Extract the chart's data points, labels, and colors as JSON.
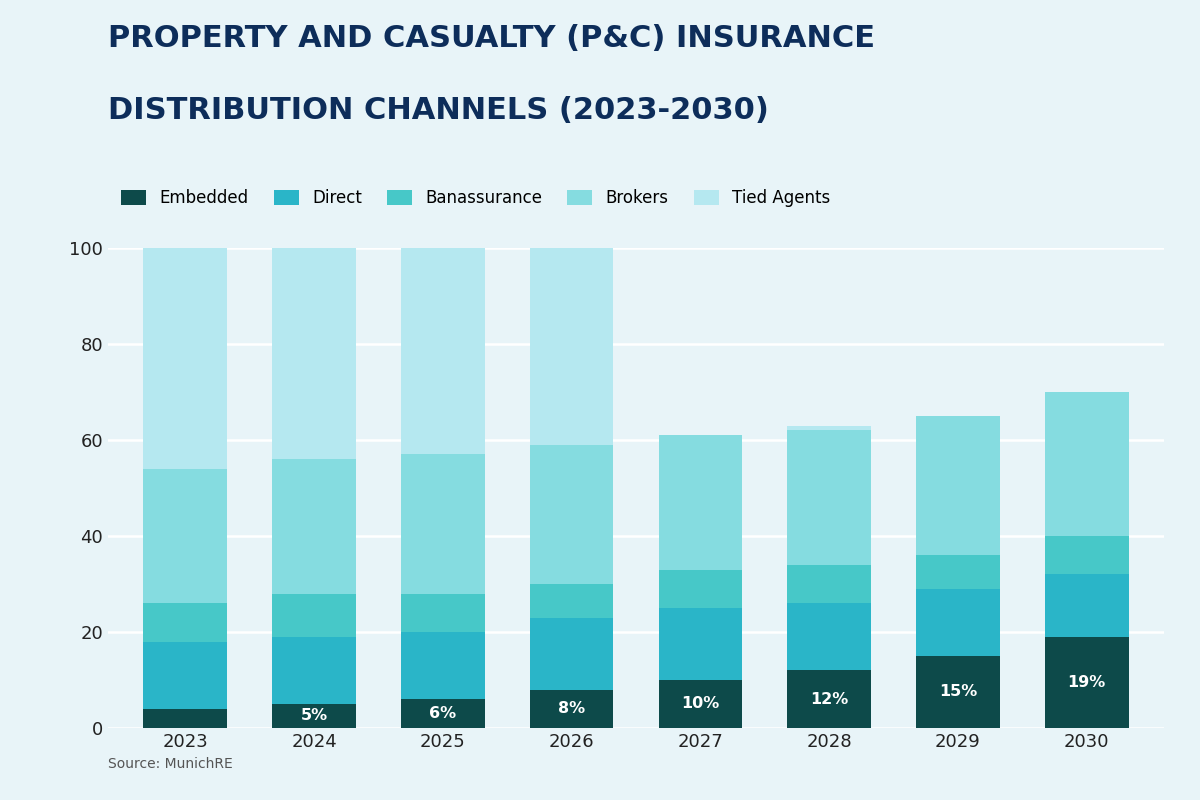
{
  "years": [
    "2023",
    "2024",
    "2025",
    "2026",
    "2027",
    "2028",
    "2029",
    "2030"
  ],
  "embedded": [
    4,
    5,
    6,
    8,
    10,
    12,
    15,
    19
  ],
  "direct": [
    14,
    14,
    14,
    15,
    15,
    14,
    14,
    13
  ],
  "banassurance": [
    8,
    9,
    8,
    7,
    8,
    8,
    7,
    8
  ],
  "brokers": [
    28,
    28,
    29,
    29,
    28,
    28,
    29,
    30
  ],
  "tied_agents": [
    46,
    44,
    43,
    41,
    0,
    0,
    0,
    0
  ],
  "tied_agents_short": [
    0,
    0,
    0,
    0,
    0,
    0,
    0,
    0
  ],
  "totals": [
    100,
    100,
    100,
    100,
    61,
    63,
    65,
    70
  ],
  "embedded_labels": [
    "",
    "5%",
    "6%",
    "8%",
    "10%",
    "12%",
    "15%",
    "19%"
  ],
  "colors": {
    "embedded": "#0d4a4a",
    "direct": "#2ab5c8",
    "banassurance": "#47c8c8",
    "brokers": "#85dce0",
    "tied_agents": "#b5e8f0"
  },
  "title_line1": "PROPERTY AND CASUALTY (P&C) INSURANCE",
  "title_line2": "DISTRIBUTION CHANNELS (2023-2030)",
  "title_color": "#0d2d5a",
  "background_color": "#e8f4f8",
  "legend_labels": [
    "Embedded",
    "Direct",
    "Banassurance",
    "Brokers",
    "Tied Agents"
  ],
  "ylabel_ticks": [
    0,
    20,
    40,
    60,
    80,
    100
  ],
  "source_text": "Source: MunichRE",
  "bar_width": 0.65,
  "ylim": [
    0,
    100
  ]
}
